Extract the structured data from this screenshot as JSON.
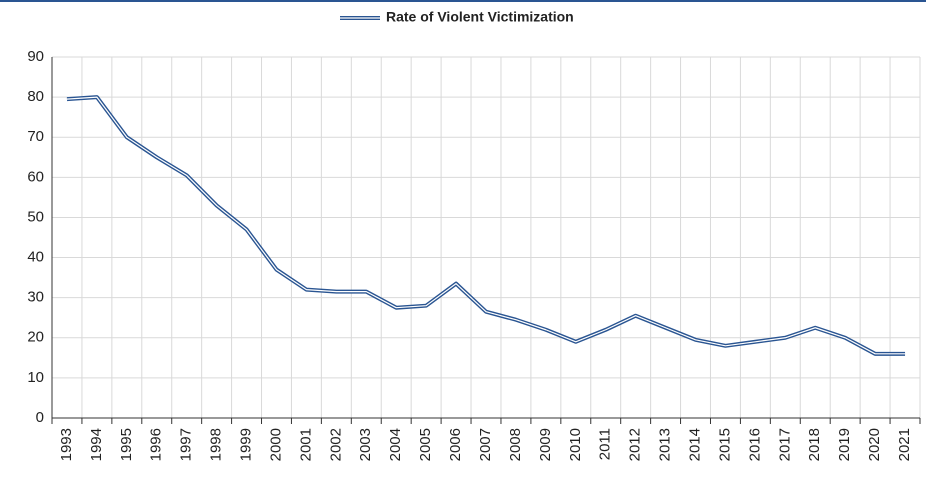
{
  "chart_data": {
    "type": "line",
    "categories": [
      "1993",
      "1994",
      "1995",
      "1996",
      "1997",
      "1998",
      "1999",
      "2000",
      "2001",
      "2002",
      "2003",
      "2004",
      "2005",
      "2006",
      "2007",
      "2008",
      "2009",
      "2010",
      "2011",
      "2012",
      "2013",
      "2014",
      "2015",
      "2016",
      "2017",
      "2018",
      "2019",
      "2020",
      "2021"
    ],
    "series": [
      {
        "name": "Rate of Violent Victimization",
        "color": "#2a5592",
        "values": [
          79.5,
          80,
          70,
          65,
          60.5,
          53,
          47,
          37,
          32,
          31.5,
          31.5,
          27.5,
          28,
          33.5,
          26.5,
          24.5,
          22,
          19,
          22,
          25.5,
          22.5,
          19.5,
          18,
          19,
          20,
          22.5,
          20,
          16,
          16
        ]
      }
    ],
    "ylim": [
      0,
      90
    ],
    "yticks": [
      0,
      10,
      20,
      30,
      40,
      50,
      60,
      70,
      80,
      90
    ],
    "grid": true,
    "legend": "top"
  }
}
